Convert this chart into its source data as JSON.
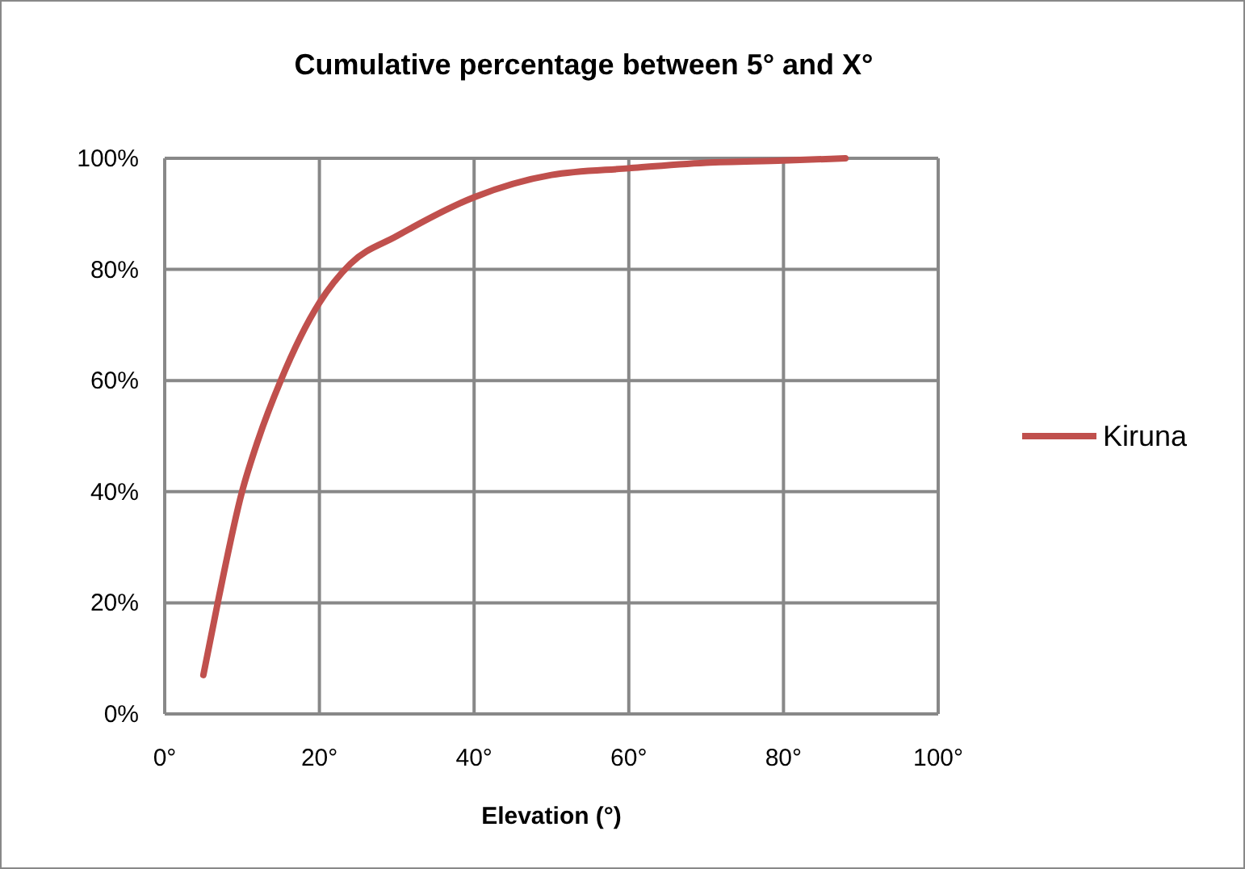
{
  "chart_data": {
    "type": "line",
    "title": "Cumulative percentage between 5° and X°",
    "xlabel": "Elevation (°)",
    "xlim": [
      0,
      100
    ],
    "xticks": [
      {
        "value": 0,
        "label": "0°"
      },
      {
        "value": 20,
        "label": "20°"
      },
      {
        "value": 40,
        "label": "40°"
      },
      {
        "value": 60,
        "label": "60°"
      },
      {
        "value": 80,
        "label": "80°"
      },
      {
        "value": 100,
        "label": "100°"
      }
    ],
    "ylim": [
      0,
      100
    ],
    "yticks": [
      {
        "value": 0,
        "label": "0%"
      },
      {
        "value": 20,
        "label": "20%"
      },
      {
        "value": 40,
        "label": "40%"
      },
      {
        "value": 60,
        "label": "60%"
      },
      {
        "value": 80,
        "label": "80%"
      },
      {
        "value": 100,
        "label": "100%"
      }
    ],
    "grid": true,
    "legend": "right",
    "marker": "none",
    "line_style": "solid",
    "series": [
      {
        "name": "Kiruna",
        "color": "#c0504d",
        "x": [
          5,
          7,
          10,
          12,
          15,
          20,
          24,
          30,
          40,
          50,
          60,
          70,
          80,
          88
        ],
        "values": [
          7,
          21,
          40,
          49,
          60,
          74,
          81,
          86,
          93,
          97,
          98.2,
          99.2,
          99.6,
          100
        ]
      }
    ]
  }
}
